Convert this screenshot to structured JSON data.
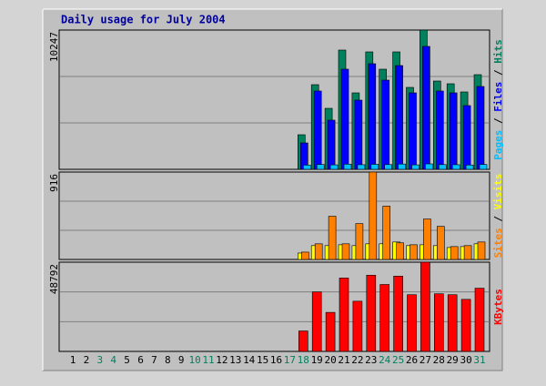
{
  "title": "Daily usage for July 2004",
  "legend_separator": " / ",
  "chart_data": [
    {
      "type": "bar",
      "ylim": [
        0,
        10247
      ],
      "yticks": [
        10247
      ],
      "grid_divisions": 3,
      "series": [
        {
          "name": "Hits",
          "color": "#00805c",
          "values": [
            0,
            0,
            0,
            0,
            0,
            0,
            0,
            0,
            0,
            0,
            0,
            0,
            0,
            0,
            0,
            0,
            0,
            2545,
            6229,
            4487,
            8774,
            5626,
            8640,
            7367,
            8640,
            6028,
            10247,
            6497,
            6296,
            5693,
            6965
          ]
        },
        {
          "name": "Files",
          "color": "#0000ff",
          "values": [
            0,
            0,
            0,
            0,
            0,
            0,
            0,
            0,
            0,
            0,
            0,
            0,
            0,
            0,
            0,
            0,
            0,
            1942,
            5760,
            3617,
            7367,
            5090,
            7769,
            6563,
            7635,
            5626,
            9042,
            5760,
            5626,
            4688,
            6095
          ]
        },
        {
          "name": "Pages",
          "color": "#00c0ff",
          "values": [
            0,
            0,
            0,
            0,
            0,
            0,
            0,
            0,
            0,
            0,
            0,
            0,
            0,
            0,
            0,
            0,
            0,
            310,
            360,
            330,
            380,
            340,
            370,
            350,
            390,
            330,
            400,
            350,
            340,
            320,
            360
          ]
        }
      ]
    },
    {
      "type": "bar",
      "ylim": [
        0,
        916
      ],
      "yticks": [
        916
      ],
      "grid_divisions": 3,
      "series": [
        {
          "name": "Visits",
          "color": "#ffff00",
          "values": [
            0,
            0,
            0,
            0,
            0,
            0,
            0,
            0,
            0,
            0,
            0,
            0,
            0,
            0,
            0,
            0,
            0,
            67,
            145,
            145,
            154,
            145,
            164,
            164,
            183,
            145,
            154,
            145,
            125,
            135,
            164
          ]
        },
        {
          "name": "Sites",
          "color": "#ff8000",
          "values": [
            0,
            0,
            0,
            0,
            0,
            0,
            0,
            0,
            0,
            0,
            0,
            0,
            0,
            0,
            0,
            0,
            0,
            77,
            164,
            453,
            164,
            376,
            916,
            559,
            174,
            154,
            424,
            347,
            135,
            145,
            183
          ]
        }
      ]
    },
    {
      "type": "bar",
      "ylim": [
        0,
        48792
      ],
      "yticks": [
        48792
      ],
      "grid_divisions": 3,
      "categories": [
        "1",
        "2",
        "3",
        "4",
        "5",
        "6",
        "7",
        "8",
        "9",
        "10",
        "11",
        "12",
        "13",
        "14",
        "15",
        "16",
        "17",
        "18",
        "19",
        "20",
        "21",
        "22",
        "23",
        "24",
        "25",
        "26",
        "27",
        "28",
        "29",
        "30",
        "31"
      ],
      "category_colors": [
        "#000000",
        "#000000",
        "#00805c",
        "#00805c",
        "#000000",
        "#000000",
        "#000000",
        "#000000",
        "#000000",
        "#00805c",
        "#00805c",
        "#000000",
        "#000000",
        "#000000",
        "#000000",
        "#000000",
        "#00805c",
        "#00805c",
        "#000000",
        "#000000",
        "#000000",
        "#000000",
        "#000000",
        "#00805c",
        "#00805c",
        "#000000",
        "#000000",
        "#000000",
        "#000000",
        "#000000",
        "#00805c"
      ],
      "series": [
        {
          "name": "KBytes",
          "color": "#ff0000",
          "values": [
            0,
            0,
            0,
            0,
            0,
            0,
            0,
            0,
            0,
            0,
            0,
            0,
            0,
            0,
            0,
            0,
            0,
            11180,
            32528,
            21346,
            40152,
            27446,
            41677,
            36595,
            41169,
            31003,
            48792,
            31511,
            31003,
            28462,
            34561
          ]
        }
      ]
    }
  ]
}
